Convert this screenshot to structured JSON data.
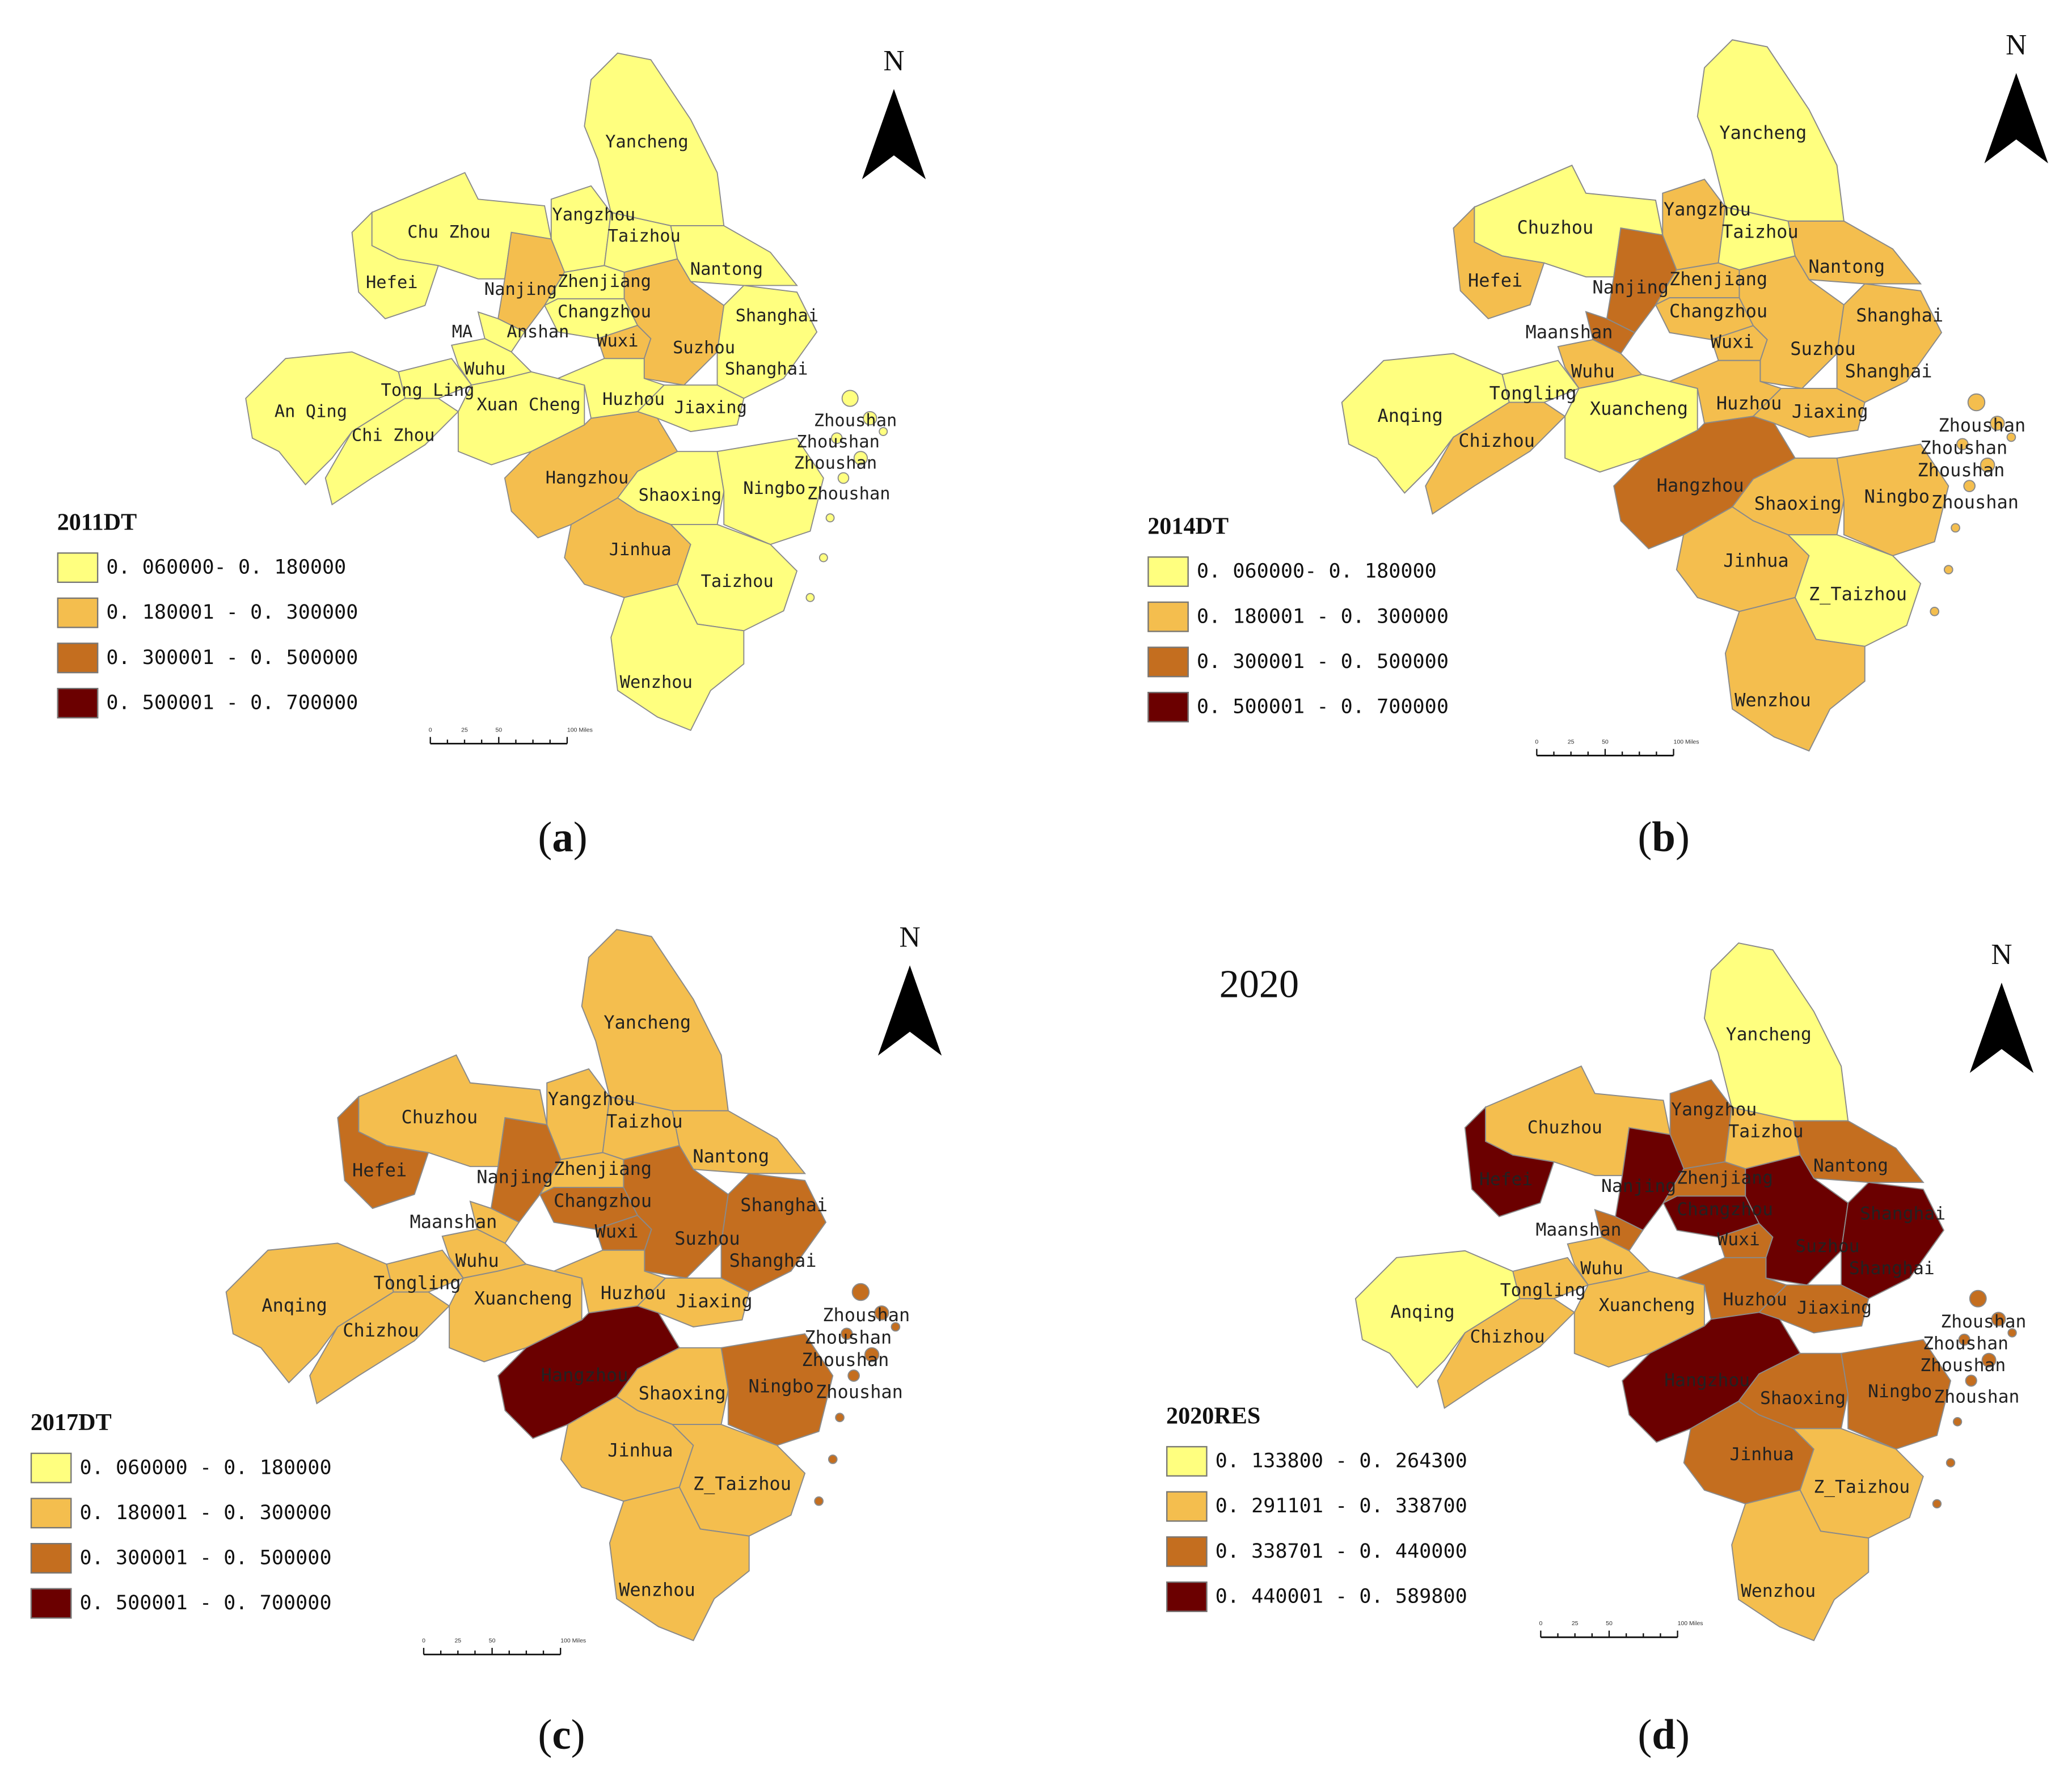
{
  "colors": [
    "#ffff7f",
    "#f4be4e",
    "#c46e1f",
    "#6b0000"
  ],
  "scale_bar": {
    "ticks": [
      "0",
      "25",
      "50",
      "100 Miles"
    ]
  },
  "north_label": "N",
  "panels": [
    {
      "id": "a",
      "caption": "a",
      "legend": {
        "title": "2011DT",
        "items": [
          "0. 060000- 0. 180000",
          "0. 180001 - 0. 300000",
          "0. 300001 - 0. 500000",
          "0. 500001 - 0. 700000"
        ]
      },
      "classes": {
        "yancheng": 0,
        "yangzhou": 0,
        "taizhou": 0,
        "nantong": 0,
        "chuzhou": 0,
        "hefei": 0,
        "nanjing": 1,
        "zhenjiang": 0,
        "changzhou": 0,
        "wuxi": 1,
        "suzhou": 1,
        "shanghai": 0,
        "maanshan": 0,
        "wuhu": 0,
        "tongling": 0,
        "anqing": 0,
        "chizhou": 0,
        "xuancheng": 0,
        "huzhou": 0,
        "jiaxing": 0,
        "hangzhou": 1,
        "shaoxing": 0,
        "ningbo": 0,
        "zhoushan": 0,
        "jinhua": 1,
        "ztaizhou": 0,
        "wenzhou": 0
      },
      "labels": {
        "yancheng": "Yancheng",
        "yangzhou": "Yangzhou",
        "taizhou": "Taizhou",
        "chuzhou": "Chu Zhou",
        "hefei": "Hefei",
        "nanjing": "Nanjing",
        "zhenjiang": "Zhenjiang",
        "nantong": "Nantong",
        "changzhou": "Changzhou",
        "shanghai_n": "Shanghai",
        "maanshan": "MA",
        "maanshan_2": "Anshan",
        "wuxi": "Wuxi",
        "suzhou": "Suzhou",
        "shanghai": "Shanghai",
        "wuhu": "Wuhu",
        "tongling": "Tong Ling",
        "xuancheng": "Xuan Cheng",
        "huzhou": "Huzhou",
        "jiaxing": "Jiaxing",
        "anqing": "An Qing",
        "chizhou": "Chi Zhou",
        "zhoushan_1": "Zhoushan",
        "zhoushan_2": "Zhoushan",
        "zhoushan_3": "Zhoushan",
        "zhoushan_4": "Zhoushan",
        "hangzhou": "Hangzhou",
        "shaoxing": "Shaoxing",
        "ningbo": "Ningbo",
        "jinhua": "Jinhua",
        "ztaizhou": "Taizhou",
        "wenzhou": "Wenzhou"
      }
    },
    {
      "id": "b",
      "caption": "b",
      "legend": {
        "title": "2014DT",
        "items": [
          "0. 060000- 0. 180000",
          "0. 180001 - 0. 300000",
          "0. 300001 - 0. 500000",
          "0. 500001 - 0. 700000"
        ]
      },
      "classes": {
        "yancheng": 0,
        "yangzhou": 1,
        "taizhou": 0,
        "nantong": 1,
        "chuzhou": 0,
        "hefei": 1,
        "nanjing": 2,
        "zhenjiang": 1,
        "changzhou": 1,
        "wuxi": 1,
        "suzhou": 1,
        "shanghai": 1,
        "maanshan": 2,
        "wuhu": 1,
        "tongling": 0,
        "anqing": 0,
        "chizhou": 1,
        "xuancheng": 0,
        "huzhou": 1,
        "jiaxing": 1,
        "hangzhou": 2,
        "shaoxing": 1,
        "ningbo": 1,
        "zhoushan": 1,
        "jinhua": 1,
        "ztaizhou": 0,
        "wenzhou": 1
      },
      "labels": {
        "yancheng": "Yancheng",
        "yangzhou": "Yangzhou",
        "taizhou": "Taizhou",
        "chuzhou": "Chuzhou",
        "hefei": "Hefei",
        "nanjing": "Nanjing",
        "zhenjiang": "Zhenjiang",
        "nantong": "Nantong",
        "changzhou": "Changzhou",
        "shanghai_n": "Shanghai",
        "maanshan": "Maanshan",
        "wuxi": "Wuxi",
        "suzhou": "Suzhou",
        "shanghai": "Shanghai",
        "wuhu": "Wuhu",
        "tongling": "Tongling",
        "xuancheng": "Xuancheng",
        "huzhou": "Huzhou",
        "jiaxing": "Jiaxing",
        "anqing": "Anqing",
        "chizhou": "Chizhou",
        "zhoushan_1": "Zhoushan",
        "zhoushan_2": "Zhoushan",
        "zhoushan_3": "Zhoushan",
        "zhoushan_4": "Zhoushan",
        "hangzhou": "Hangzhou",
        "shaoxing": "Shaoxing",
        "ningbo": "Ningbo",
        "jinhua": "Jinhua",
        "ztaizhou": "Z_Taizhou",
        "wenzhou": "Wenzhou"
      }
    },
    {
      "id": "c",
      "caption": "c",
      "legend": {
        "title": "2017DT",
        "items": [
          "0. 060000 - 0. 180000",
          "0. 180001 - 0. 300000",
          "0. 300001 - 0. 500000",
          "0. 500001 - 0. 700000"
        ]
      },
      "classes": {
        "yancheng": 1,
        "yangzhou": 1,
        "taizhou": 1,
        "nantong": 1,
        "chuzhou": 1,
        "hefei": 2,
        "nanjing": 2,
        "zhenjiang": 1,
        "changzhou": 2,
        "wuxi": 2,
        "suzhou": 2,
        "shanghai": 2,
        "maanshan": 1,
        "wuhu": 1,
        "tongling": 1,
        "anqing": 1,
        "chizhou": 1,
        "xuancheng": 1,
        "huzhou": 1,
        "jiaxing": 1,
        "hangzhou": 3,
        "shaoxing": 1,
        "ningbo": 2,
        "zhoushan": 2,
        "jinhua": 1,
        "ztaizhou": 1,
        "wenzhou": 1
      },
      "labels": {
        "yancheng": "Yancheng",
        "yangzhou": "Yangzhou",
        "taizhou": "Taizhou",
        "chuzhou": "Chuzhou",
        "hefei": "Hefei",
        "nanjing": "Nanjing",
        "zhenjiang": "Zhenjiang",
        "nantong": "Nantong",
        "changzhou": "Changzhou",
        "shanghai_n": "Shanghai",
        "maanshan": "Maanshan",
        "wuxi": "Wuxi",
        "suzhou": "Suzhou",
        "shanghai": "Shanghai",
        "wuhu": "Wuhu",
        "tongling": "Tongling",
        "xuancheng": "Xuancheng",
        "huzhou": "Huzhou",
        "jiaxing": "Jiaxing",
        "anqing": "Anqing",
        "chizhou": "Chizhou",
        "zhoushan_1": "Zhoushan",
        "zhoushan_2": "Zhoushan",
        "zhoushan_3": "Zhoushan",
        "zhoushan_4": "Zhoushan",
        "hangzhou": "Hangzhou",
        "shaoxing": "Shaoxing",
        "ningbo": "Ningbo",
        "jinhua": "Jinhua",
        "ztaizhou": "Z_Taizhou",
        "wenzhou": "Wenzhou"
      }
    },
    {
      "id": "d",
      "caption": "d",
      "title": "2020",
      "legend": {
        "title": "2020RES",
        "items": [
          "0. 133800 - 0. 264300",
          "0. 291101 - 0. 338700",
          "0. 338701 - 0. 440000",
          "0. 440001 - 0. 589800"
        ]
      },
      "classes": {
        "yancheng": 0,
        "yangzhou": 2,
        "taizhou": 1,
        "nantong": 2,
        "chuzhou": 1,
        "hefei": 3,
        "nanjing": 3,
        "zhenjiang": 2,
        "changzhou": 3,
        "wuxi": 2,
        "suzhou": 3,
        "shanghai": 3,
        "maanshan": 2,
        "wuhu": 1,
        "tongling": 1,
        "anqing": 0,
        "chizhou": 1,
        "xuancheng": 1,
        "huzhou": 2,
        "jiaxing": 2,
        "hangzhou": 3,
        "shaoxing": 2,
        "ningbo": 2,
        "zhoushan": 2,
        "jinhua": 2,
        "ztaizhou": 1,
        "wenzhou": 1
      },
      "labels": {
        "yancheng": "Yancheng",
        "yangzhou": "Yangzhou",
        "taizhou": "Taizhou",
        "chuzhou": "Chuzhou",
        "hefei": "Hefei",
        "nanjing": "Nanjing",
        "zhenjiang": "Zhenjiang",
        "nantong": "Nantong",
        "changzhou": "Changzhou",
        "shanghai_n": "Shanghai",
        "maanshan": "Maanshan",
        "wuxi": "Wuxi",
        "suzhou": "Suzhou",
        "shanghai": "Shanghai",
        "wuhu": "Wuhu",
        "tongling": "Tongling",
        "xuancheng": "Xuancheng",
        "huzhou": "Huzhou",
        "jiaxing": "Jiaxing",
        "anqing": "Anqing",
        "chizhou": "Chizhou",
        "zhoushan_1": "Zhoushan",
        "zhoushan_2": "Zhoushan",
        "zhoushan_3": "Zhoushan",
        "zhoushan_4": "Zhoushan",
        "hangzhou": "Hangzhou",
        "shaoxing": "Shaoxing",
        "ningbo": "Ningbo",
        "jinhua": "Jinhua",
        "ztaizhou": "Z_Taizhou",
        "wenzhou": "Wenzhou"
      }
    }
  ]
}
